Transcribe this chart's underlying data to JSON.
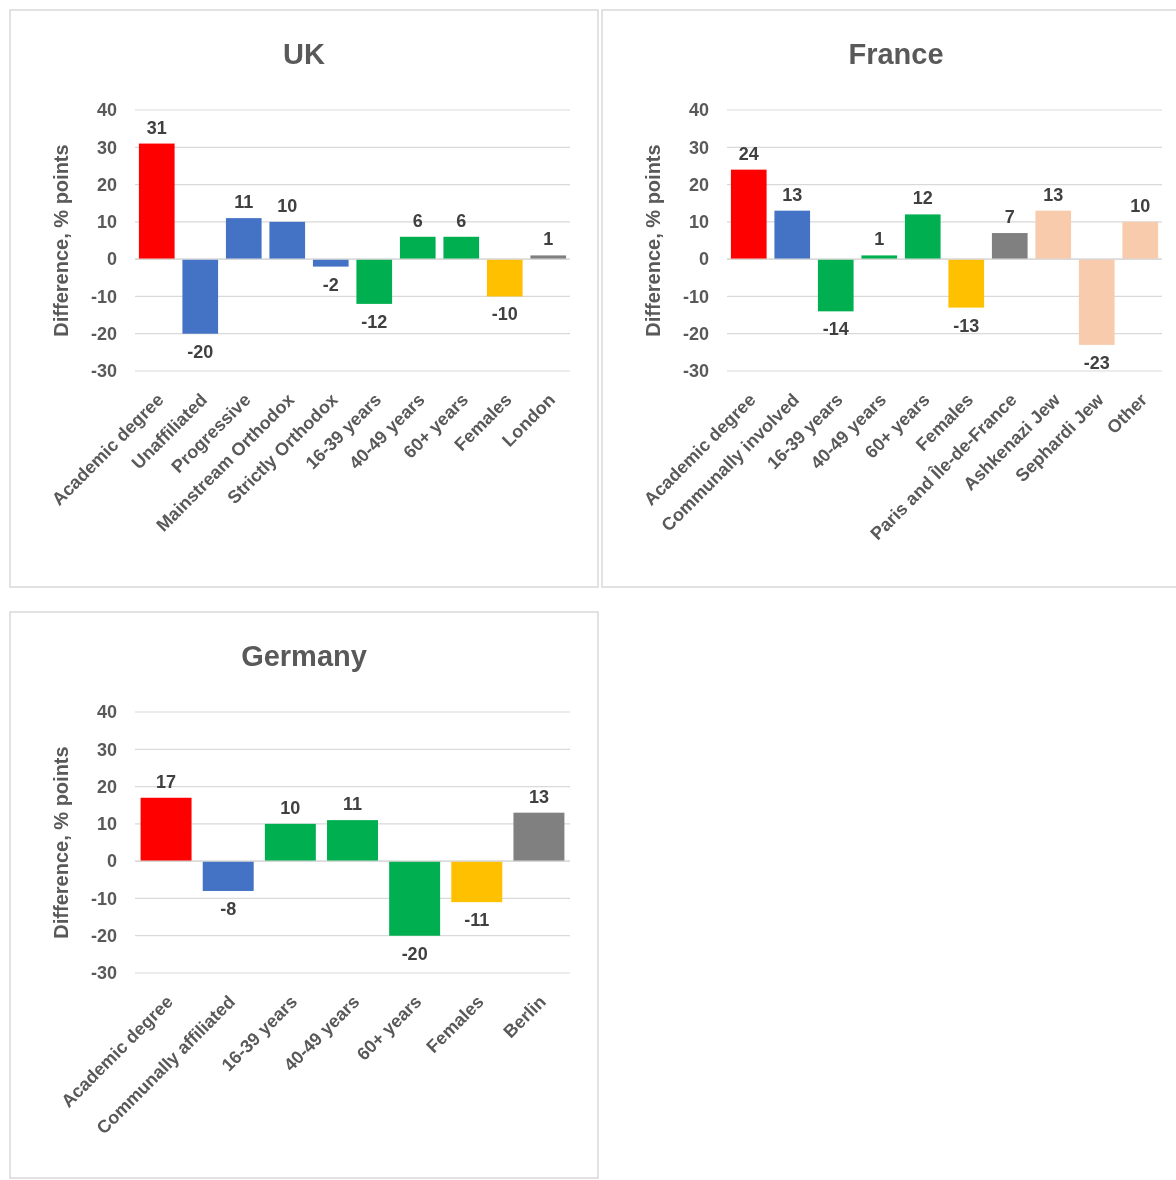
{
  "chart_data": [
    {
      "type": "bar",
      "title": "UK",
      "ylabel": "Difference,  % points",
      "categories": [
        "Academic degree",
        "Unaffiliated",
        "Progressive",
        "Mainstream Orthodox",
        "Strictly Orthodox",
        "16-39 years",
        "40-49 years",
        "60+ years",
        "Females",
        "London"
      ],
      "values": [
        31,
        -20,
        11,
        10,
        -2,
        -12,
        6,
        6,
        -10,
        1
      ],
      "colors": [
        "#ff0000",
        "#4472c4",
        "#4472c4",
        "#4472c4",
        "#4472c4",
        "#00b050",
        "#00b050",
        "#00b050",
        "#ffc000",
        "#808080"
      ],
      "ylim": [
        -30,
        40
      ],
      "yticks": [
        -30,
        -20,
        -10,
        0,
        10,
        20,
        30,
        40
      ],
      "grid": "y",
      "data_labels": true
    },
    {
      "type": "bar",
      "title": "France",
      "ylabel": "Difference,  % points",
      "categories": [
        "Academic degree",
        "Communally involved",
        "16-39 years",
        "40-49 years",
        "60+ years",
        "Females",
        "Paris and Île-de-France",
        "Ashkenazi Jew",
        "Sephardi Jew",
        "Other"
      ],
      "values": [
        24,
        13,
        -14,
        1,
        12,
        -13,
        7,
        13,
        -23,
        10
      ],
      "colors": [
        "#ff0000",
        "#4472c4",
        "#00b050",
        "#00b050",
        "#00b050",
        "#ffc000",
        "#808080",
        "#f8cbad",
        "#f8cbad",
        "#f8cbad"
      ],
      "ylim": [
        -30,
        40
      ],
      "yticks": [
        -30,
        -20,
        -10,
        0,
        10,
        20,
        30,
        40
      ],
      "grid": "y",
      "data_labels": true
    },
    {
      "type": "bar",
      "title": "Germany",
      "ylabel": "Difference,  % points",
      "categories": [
        "Academic degree",
        "Communally affiliated",
        "16-39 years",
        "40-49 years",
        "60+ years",
        "Females",
        "Berlin"
      ],
      "values": [
        17,
        -8,
        10,
        11,
        -20,
        -11,
        13
      ],
      "colors": [
        "#ff0000",
        "#4472c4",
        "#00b050",
        "#00b050",
        "#00b050",
        "#ffc000",
        "#808080"
      ],
      "ylim": [
        -30,
        40
      ],
      "yticks": [
        -30,
        -20,
        -10,
        0,
        10,
        20,
        30,
        40
      ],
      "grid": "y",
      "data_labels": true
    }
  ]
}
